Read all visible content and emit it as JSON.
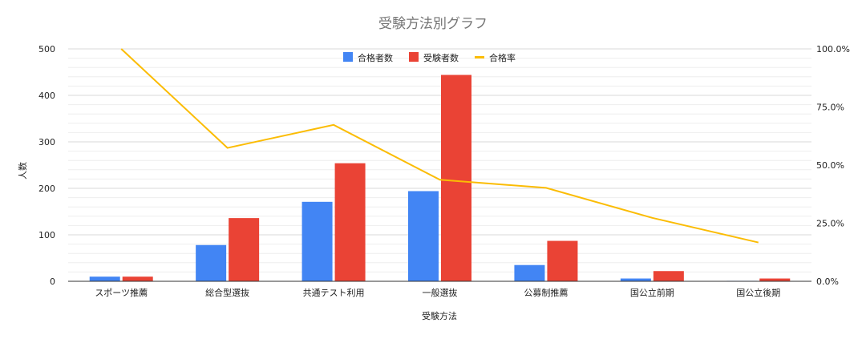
{
  "chart_data": {
    "type": "bar",
    "title": "受験方法別グラフ",
    "xlabel": "受験方法",
    "ylabel": "人数",
    "categories": [
      "スポーツ推薦",
      "総合型選抜",
      "共通テスト利用",
      "一般選抜",
      "公募制推薦",
      "国公立前期",
      "国公立後期"
    ],
    "series": [
      {
        "name": "合格者数",
        "type": "bar",
        "axis": "left",
        "color": "#4285f4",
        "values": [
          10,
          78,
          171,
          194,
          35,
          6,
          1
        ]
      },
      {
        "name": "受験者数",
        "type": "bar",
        "axis": "left",
        "color": "#ea4335",
        "values": [
          10,
          136,
          254,
          444,
          87,
          22,
          6
        ]
      },
      {
        "name": "合格率",
        "type": "line",
        "axis": "right",
        "color": "#fbbc04",
        "values": [
          1.0,
          0.574,
          0.673,
          0.437,
          0.402,
          0.273,
          0.167
        ]
      }
    ],
    "ylim": [
      0,
      500
    ],
    "yticks": [
      "0",
      "100",
      "200",
      "300",
      "400",
      "500"
    ],
    "y2lim": [
      0,
      1.0
    ],
    "y2ticks": [
      "0.0%",
      "25.0%",
      "50.0%",
      "75.0%",
      "100.0%"
    ],
    "grid": true,
    "legend_position": "top"
  }
}
